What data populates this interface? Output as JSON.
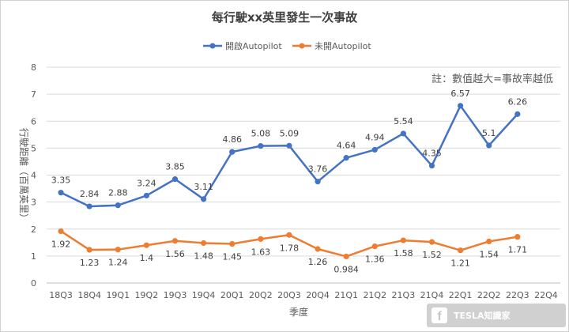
{
  "chart_data": {
    "type": "line",
    "title": "每行駛xx英里發生一次事故",
    "xlabel": "季度",
    "ylabel": "行駛距離（百萬英里）",
    "ylim": [
      0,
      8
    ],
    "yticks": [
      "0",
      "1",
      "2",
      "3",
      "4",
      "5",
      "6",
      "7",
      "8"
    ],
    "grid": true,
    "legend_position": "top-center",
    "categories": [
      "18Q3",
      "18Q4",
      "19Q1",
      "19Q2",
      "19Q3",
      "19Q4",
      "20Q1",
      "20Q2",
      "20Q3",
      "20Q4",
      "21Q1",
      "21Q2",
      "21Q3",
      "21Q4",
      "22Q1",
      "22Q2",
      "22Q3",
      "22Q4"
    ],
    "series": [
      {
        "name": "開啟Autopilot",
        "color": "#4472c4",
        "values": [
          3.35,
          2.84,
          2.88,
          3.24,
          3.85,
          3.11,
          4.86,
          5.08,
          5.09,
          3.76,
          4.64,
          4.94,
          5.54,
          4.35,
          6.57,
          5.1,
          6.26,
          null
        ],
        "labels": [
          "3.35",
          "2.84",
          "2.88",
          "3.24",
          "3.85",
          "3.11",
          "4.86",
          "5.08",
          "5.09",
          "3.76",
          "4.64",
          "4.94",
          "5.54",
          "4.35",
          "6.57",
          "5.1",
          "6.26",
          ""
        ]
      },
      {
        "name": "未開Autopilot",
        "color": "#ed7d31",
        "values": [
          1.92,
          1.23,
          1.24,
          1.4,
          1.56,
          1.48,
          1.45,
          1.63,
          1.78,
          1.26,
          0.984,
          1.36,
          1.58,
          1.52,
          1.21,
          1.54,
          1.71,
          null
        ],
        "labels": [
          "1.92",
          "1.23",
          "1.24",
          "1.4",
          "1.56",
          "1.48",
          "1.45",
          "1.63",
          "1.78",
          "1.26",
          "0.984",
          "1.36",
          "1.58",
          "1.52",
          "1.21",
          "1.54",
          "1.71",
          ""
        ]
      }
    ],
    "annotation": "註：數值越大=事故率越低"
  },
  "watermark": {
    "text": "TESLA知識家",
    "icon": "facebook-icon",
    "color": "#c8c8c8"
  }
}
